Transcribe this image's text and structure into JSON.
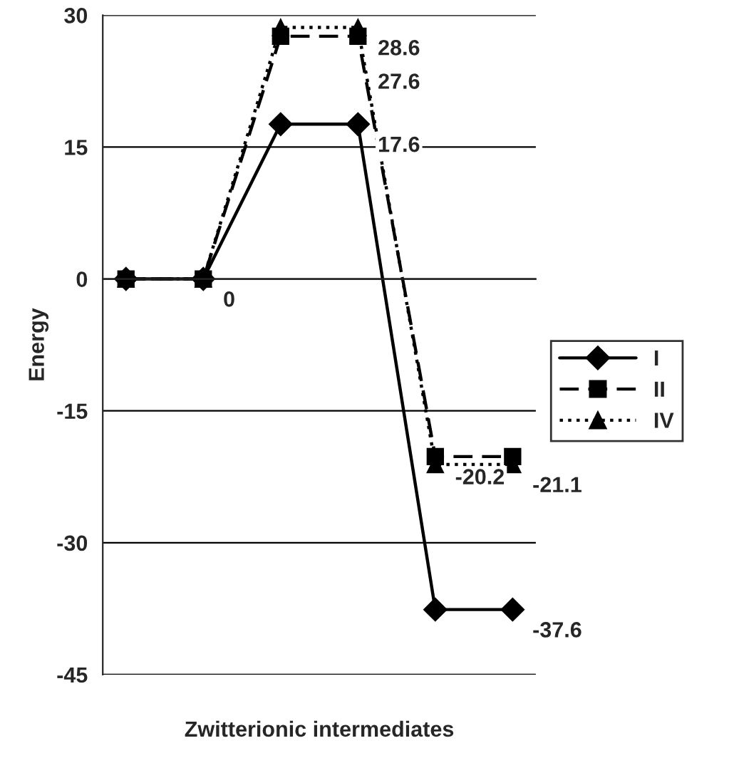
{
  "chart_data": {
    "type": "line",
    "xlabel": "Zwitterionic intermediates",
    "ylabel": "Energy",
    "categories": [
      null,
      null,
      null,
      null,
      null,
      null
    ],
    "series": [
      {
        "name": "I",
        "color": "#000000",
        "marker": "diamond",
        "line_style": "solid",
        "values": [
          0,
          0,
          17.6,
          17.6,
          -37.6,
          -37.6
        ],
        "value_labels": [
          null,
          "0",
          null,
          "17.6",
          null,
          "-37.6"
        ]
      },
      {
        "name": "II",
        "color": "#000000",
        "marker": "square",
        "line_style": "dashed",
        "values": [
          0,
          0,
          27.6,
          27.6,
          -20.2,
          -20.2
        ],
        "value_labels": [
          null,
          null,
          null,
          "27.6",
          "-20.2",
          null
        ]
      },
      {
        "name": "IV",
        "color": "#000000",
        "marker": "triangle",
        "line_style": "dotted",
        "values": [
          0,
          0,
          28.6,
          28.6,
          -21.1,
          -21.1
        ],
        "value_labels": [
          null,
          null,
          null,
          "28.6",
          null,
          "-21.1"
        ]
      }
    ],
    "ylim": [
      -45,
      30
    ],
    "yticks": [
      -45,
      -30,
      -15,
      0,
      15,
      30
    ],
    "grid": "y",
    "legend": "right",
    "tick_labels": "y"
  }
}
